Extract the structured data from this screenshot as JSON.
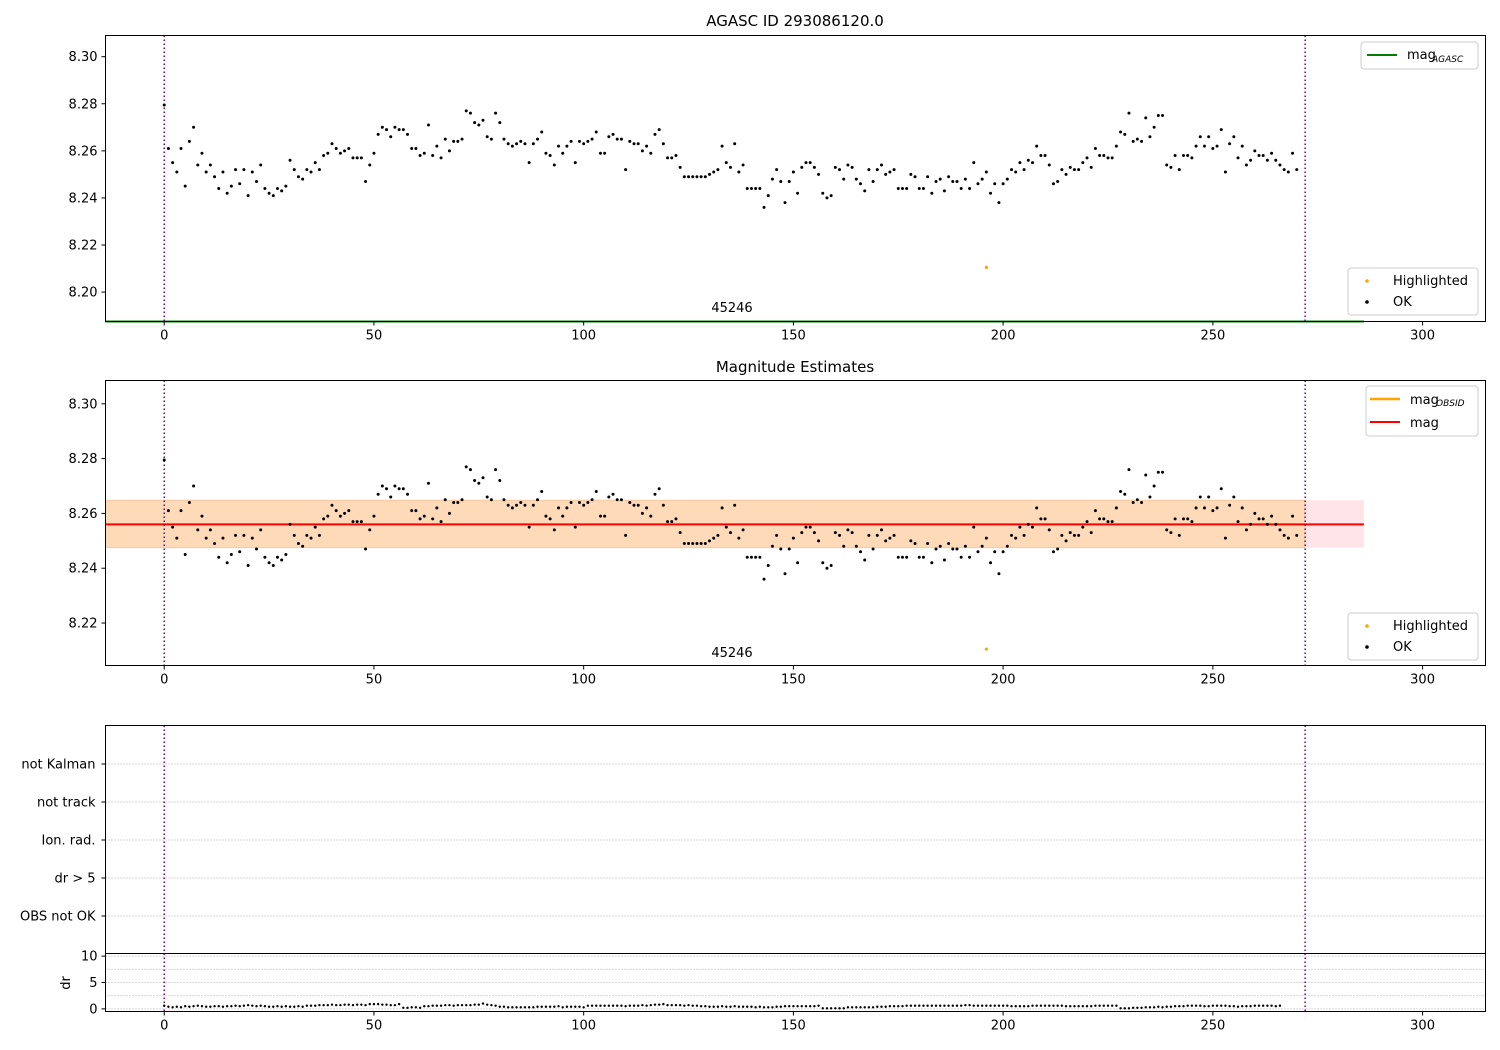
{
  "colors": {
    "ok": "#000000",
    "highlighted": "#ffa500",
    "mag_agasc": "#008000",
    "mag_obsid": "#ffa500",
    "mag": "#ff0000",
    "obs_boundary": "#800080",
    "band_orange": "#ffdab9",
    "band_pink": "#ffe4e8"
  },
  "chart_data": [
    {
      "type": "scatter",
      "title": "AGASC ID 293086120.0",
      "xlabel": "",
      "ylabel": "",
      "xlim": [
        -14,
        315
      ],
      "ylim": [
        8.1875,
        8.309
      ],
      "xticks": [
        "0",
        "50",
        "100",
        "150",
        "200",
        "250",
        "300"
      ],
      "yticks": [
        "8.20",
        "8.22",
        "8.24",
        "8.26",
        "8.28",
        "8.30"
      ],
      "grid": false,
      "obs_boundaries": [
        0,
        272
      ],
      "obsid_annotation": {
        "text": "45246",
        "x": 136,
        "y": 8.187
      },
      "reference_lines": [
        {
          "name": "mag",
          "subscript": "AGASC",
          "y": 8.1875,
          "x_range": [
            -14,
            286
          ]
        }
      ],
      "legends": [
        {
          "placement": "top-right",
          "entries": [
            {
              "label": "mag",
              "subscript": "AGASC",
              "kind": "line",
              "color": "#008000"
            }
          ]
        },
        {
          "placement": "bottom-right",
          "entries": [
            {
              "label": "Highlighted",
              "kind": "marker",
              "color": "#ffa500"
            },
            {
              "label": "OK",
              "kind": "marker",
              "color": "#000000"
            }
          ]
        }
      ],
      "series": [
        {
          "name": "Highlighted",
          "x": [
            196
          ],
          "y": [
            8.2105
          ]
        }
      ]
    },
    {
      "type": "scatter",
      "title": "Magnitude Estimates",
      "xlabel": "",
      "ylabel": "",
      "xlim": [
        -14,
        315
      ],
      "ylim": [
        8.2045,
        8.3085
      ],
      "xticks": [
        "0",
        "50",
        "100",
        "150",
        "200",
        "250",
        "300"
      ],
      "yticks": [
        "8.22",
        "8.24",
        "8.26",
        "8.28",
        "8.30"
      ],
      "grid": false,
      "obs_boundaries": [
        0,
        272
      ],
      "obsid_annotation": {
        "text": "45246",
        "x": 136,
        "y": 8.2045
      },
      "reference_lines": [
        {
          "name": "mag",
          "subscript": "OBSID",
          "y": 8.256,
          "x_range": [
            -14,
            286
          ]
        },
        {
          "name": "mag",
          "subscript": "",
          "y": 8.256,
          "x_range": [
            -14,
            286
          ]
        }
      ],
      "bands": [
        {
          "y_range": [
            8.2475,
            8.2648
          ],
          "x_range": [
            -14,
            286
          ]
        }
      ],
      "legends": [
        {
          "placement": "top-right",
          "entries": [
            {
              "label": "mag",
              "subscript": "OBSID",
              "kind": "line",
              "color": "#ffa500"
            },
            {
              "label": "mag",
              "subscript": "",
              "kind": "line",
              "color": "#ff0000"
            }
          ]
        },
        {
          "placement": "bottom-right",
          "entries": [
            {
              "label": "Highlighted",
              "kind": "marker",
              "color": "#ffa500"
            },
            {
              "label": "OK",
              "kind": "marker",
              "color": "#000000"
            }
          ]
        }
      ],
      "series": [
        {
          "name": "Highlighted",
          "x": [
            196
          ],
          "y": [
            8.2105
          ]
        }
      ]
    },
    {
      "type": "scatter",
      "title": "",
      "xlabel": "",
      "ylabel": "",
      "xlim": [
        -14,
        315
      ],
      "categories": [
        "not Kalman",
        "not track",
        "Ion. rad.",
        "dr > 5",
        "OBS not OK"
      ],
      "grid": true,
      "obs_boundaries": [
        0,
        272
      ],
      "series": []
    },
    {
      "type": "scatter",
      "title": "",
      "xlabel": "",
      "ylabel": "dr",
      "xlim": [
        -14,
        315
      ],
      "ylim": [
        -0.5,
        10.5
      ],
      "xticks": [
        "0",
        "50",
        "100",
        "150",
        "200",
        "250",
        "300"
      ],
      "yticks": [
        "0",
        "5",
        "10"
      ],
      "grid": true,
      "obs_boundaries": [
        0,
        272
      ]
    }
  ],
  "mag_series": {
    "name": "OK",
    "x_start": 0,
    "x_step": 1,
    "y": [
      8.2795,
      8.261,
      8.255,
      8.251,
      8.261,
      8.245,
      8.264,
      8.27,
      8.254,
      8.259,
      8.251,
      8.254,
      8.249,
      8.244,
      8.251,
      8.242,
      8.245,
      8.252,
      8.246,
      8.252,
      8.241,
      8.251,
      8.247,
      8.254,
      8.244,
      8.242,
      8.241,
      8.244,
      8.243,
      8.245,
      8.256,
      8.252,
      8.249,
      8.248,
      8.252,
      8.251,
      8.255,
      8.252,
      8.258,
      8.259,
      8.263,
      8.261,
      8.259,
      8.26,
      8.261,
      8.257,
      8.257,
      8.257,
      8.247,
      8.254,
      8.259,
      8.267,
      8.27,
      8.269,
      8.266,
      8.27,
      8.269,
      8.269,
      8.267,
      8.261,
      8.261,
      8.258,
      8.259,
      8.271,
      8.258,
      8.262,
      8.257,
      8.265,
      8.26,
      8.264,
      8.264,
      8.265,
      8.277,
      8.276,
      8.272,
      8.271,
      8.273,
      8.266,
      8.265,
      8.276,
      8.272,
      8.265,
      8.263,
      8.262,
      8.263,
      8.264,
      8.263,
      8.255,
      8.263,
      8.265,
      8.268,
      8.259,
      8.258,
      8.254,
      8.262,
      8.259,
      8.262,
      8.264,
      8.255,
      8.264,
      8.263,
      8.264,
      8.265,
      8.268,
      8.259,
      8.259,
      8.266,
      8.267,
      8.265,
      8.265,
      8.252,
      8.264,
      8.263,
      8.263,
      8.26,
      8.262,
      8.259,
      8.267,
      8.269,
      8.263,
      8.257,
      8.257,
      8.258,
      8.253,
      8.249,
      8.249,
      8.249,
      8.249,
      8.249,
      8.249,
      8.25,
      8.251,
      8.252,
      8.262,
      8.255,
      8.253,
      8.263,
      8.251,
      8.254,
      8.244,
      8.244,
      8.244,
      8.244,
      8.236,
      8.241,
      8.248,
      8.252,
      8.247,
      8.238,
      8.247,
      8.251,
      8.242,
      8.253,
      8.255,
      8.255,
      8.253,
      8.25,
      8.242,
      8.24,
      8.241,
      8.253,
      8.252,
      8.248,
      8.254,
      8.253,
      8.248,
      8.246,
      8.243,
      8.252,
      8.247,
      8.252,
      8.254,
      8.25,
      8.251,
      8.252,
      8.244,
      8.244,
      8.244,
      8.25,
      8.249,
      8.244,
      8.244,
      8.249,
      8.242,
      8.247,
      8.248,
      8.243,
      8.249,
      8.247,
      8.247,
      8.244,
      8.248,
      8.244,
      8.255,
      8.246,
      8.248,
      8.251,
      8.242,
      8.246,
      8.238,
      8.246,
      8.248,
      8.252,
      8.251,
      8.255,
      8.252,
      8.256,
      8.255,
      8.262,
      8.258,
      8.258,
      8.254,
      8.246,
      8.247,
      8.252,
      8.25,
      8.253,
      8.252,
      8.252,
      8.255,
      8.257,
      8.253,
      8.261,
      8.258,
      8.258,
      8.257,
      8.257,
      8.262,
      8.268,
      8.267,
      8.276,
      8.264,
      8.265,
      8.264,
      8.274,
      8.266,
      8.27,
      8.275,
      8.275,
      8.254,
      8.253,
      8.258,
      8.252,
      8.258,
      8.258,
      8.257,
      8.262,
      8.266,
      8.262,
      8.266,
      8.261,
      8.262,
      8.269,
      8.251,
      8.263,
      8.266,
      8.257,
      8.262,
      8.254,
      8.256,
      8.26,
      8.258,
      8.258,
      8.256,
      8.259,
      8.256,
      8.254,
      8.252,
      8.251,
      8.259,
      8.252
    ]
  },
  "dr_series": {
    "name": "dr",
    "x_start": 0,
    "x_step": 1,
    "y": [
      0.6,
      0.4,
      0.3,
      0.4,
      0.3,
      0.5,
      0.4,
      0.5,
      0.6,
      0.5,
      0.4,
      0.4,
      0.5,
      0.5,
      0.4,
      0.5,
      0.5,
      0.6,
      0.5,
      0.6,
      0.7,
      0.6,
      0.5,
      0.6,
      0.5,
      0.4,
      0.4,
      0.5,
      0.4,
      0.5,
      0.4,
      0.4,
      0.5,
      0.4,
      0.6,
      0.6,
      0.6,
      0.7,
      0.7,
      0.7,
      0.8,
      0.7,
      0.7,
      0.8,
      0.8,
      0.7,
      0.8,
      0.8,
      0.7,
      0.9,
      0.9,
      0.9,
      0.8,
      0.8,
      0.7,
      0.7,
      0.9,
      0.2,
      0.2,
      0.3,
      0.3,
      0.2,
      0.5,
      0.5,
      0.6,
      0.6,
      0.6,
      0.7,
      0.7,
      0.6,
      0.7,
      0.7,
      0.7,
      0.7,
      0.8,
      0.8,
      1.0,
      0.8,
      0.7,
      0.6,
      0.4,
      0.4,
      0.3,
      0.3,
      0.3,
      0.3,
      0.3,
      0.3,
      0.3,
      0.4,
      0.4,
      0.4,
      0.4,
      0.4,
      0.5,
      0.3,
      0.4,
      0.4,
      0.4,
      0.4,
      0.3,
      0.6,
      0.6,
      0.6,
      0.6,
      0.6,
      0.6,
      0.6,
      0.6,
      0.6,
      0.5,
      0.6,
      0.6,
      0.6,
      0.7,
      0.6,
      0.7,
      0.8,
      0.8,
      0.9,
      0.7,
      0.7,
      0.7,
      0.7,
      0.6,
      0.7,
      0.6,
      0.6,
      0.5,
      0.5,
      0.4,
      0.4,
      0.4,
      0.5,
      0.4,
      0.4,
      0.5,
      0.4,
      0.4,
      0.4,
      0.4,
      0.3,
      0.4,
      0.3,
      0.3,
      0.3,
      0.4,
      0.4,
      0.5,
      0.5,
      0.5,
      0.5,
      0.5,
      0.5,
      0.5,
      0.5,
      0.6,
      0.1,
      0.1,
      0.1,
      0.1,
      0.1,
      0.1,
      0.3,
      0.3,
      0.3,
      0.3,
      0.3,
      0.3,
      0.3,
      0.4,
      0.4,
      0.4,
      0.5,
      0.5,
      0.5,
      0.5,
      0.6,
      0.6,
      0.6,
      0.6,
      0.6,
      0.6,
      0.6,
      0.6,
      0.6,
      0.6,
      0.6,
      0.6,
      0.6,
      0.6,
      0.7,
      0.7,
      0.6,
      0.6,
      0.6,
      0.6,
      0.6,
      0.6,
      0.6,
      0.6,
      0.6,
      0.5,
      0.5,
      0.5,
      0.5,
      0.5,
      0.6,
      0.6,
      0.6,
      0.6,
      0.6,
      0.6,
      0.6,
      0.6,
      0.5,
      0.5,
      0.5,
      0.5,
      0.5,
      0.5,
      0.5,
      0.6,
      0.6,
      0.6,
      0.6,
      0.6,
      0.6,
      0.1,
      0.1,
      0.1,
      0.2,
      0.2,
      0.2,
      0.3,
      0.3,
      0.3,
      0.4,
      0.3,
      0.4,
      0.4,
      0.5,
      0.5,
      0.5,
      0.6,
      0.6,
      0.6,
      0.6,
      0.5,
      0.5,
      0.6,
      0.6,
      0.6,
      0.6,
      0.5,
      0.5,
      0.4,
      0.5,
      0.5,
      0.5,
      0.6,
      0.6,
      0.6,
      0.6,
      0.6,
      0.5,
      0.6
    ]
  }
}
